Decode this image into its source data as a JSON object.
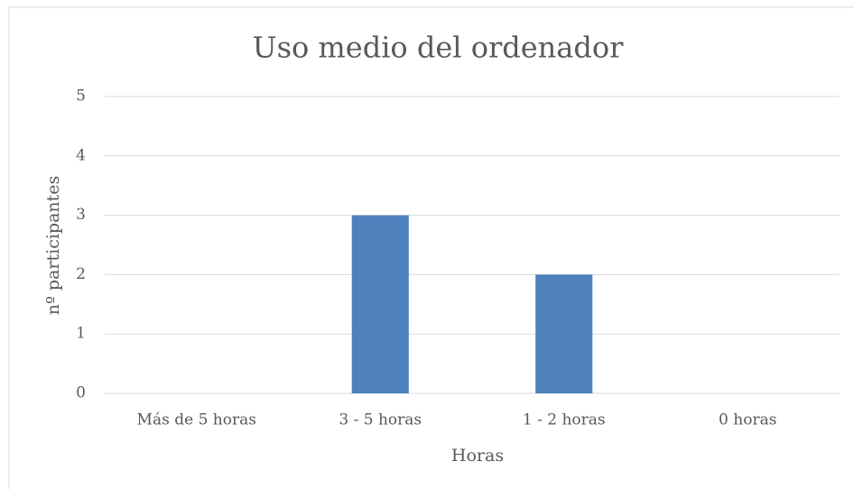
{
  "chart_data": {
    "type": "bar",
    "title": "Uso medio del ordenador",
    "x_label": "Horas",
    "y_label": "nº participantes",
    "categories": [
      "Más de 5 horas",
      "3 - 5 horas",
      "1 - 2 horas",
      "0 horas"
    ],
    "values": [
      0,
      3,
      2,
      0
    ],
    "color": "#4f81bd",
    "ylim": [
      0,
      5
    ],
    "yticks": [
      0,
      1,
      2,
      3,
      4,
      5
    ],
    "grid": true
  }
}
